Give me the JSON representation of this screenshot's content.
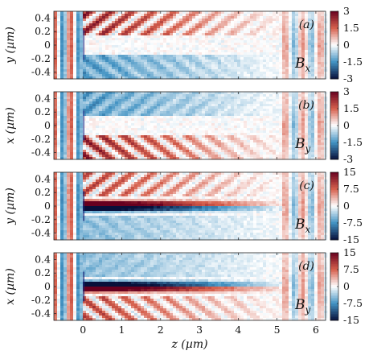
{
  "chart_data": {
    "type": "heatmap",
    "xlabel": "z (µm)",
    "xlim": [
      -0.75,
      6.25
    ],
    "xticks": [
      0,
      1,
      2,
      3,
      4,
      5,
      6
    ],
    "xtick_labels": [
      "0",
      "1",
      "2",
      "3",
      "4",
      "5",
      "6"
    ],
    "panels": [
      {
        "panel_label": "(a)",
        "field_label": "Bx",
        "ylabel": "y (µm)",
        "ylim": [
          -0.5,
          0.5
        ],
        "yticks": [
          0.4,
          0.2,
          0,
          -0.2,
          -0.4
        ],
        "ytick_labels": [
          "0.4",
          "0.2",
          "0",
          "-0.2",
          "-0.4"
        ],
        "colorbar_ticks": [
          3,
          1.5,
          0,
          -1.5,
          -3
        ],
        "colorbar_labels": [
          "3",
          "1.5",
          "0",
          "-1.5",
          "-3"
        ],
        "clim": [
          -3,
          3
        ],
        "pattern": "upper-red-lower-blue"
      },
      {
        "panel_label": "(b)",
        "field_label": "By",
        "ylabel": "x (µm)",
        "ylim": [
          -0.5,
          0.5
        ],
        "yticks": [
          0.4,
          0.2,
          0,
          -0.2,
          -0.4
        ],
        "ytick_labels": [
          "0.4",
          "0.2",
          "0",
          "-0.2",
          "-0.4"
        ],
        "colorbar_ticks": [
          3,
          1.5,
          0,
          -1.5,
          -3
        ],
        "colorbar_labels": [
          "3",
          "1.5",
          "0",
          "-1.5",
          "-3"
        ],
        "clim": [
          -3,
          3
        ],
        "pattern": "upper-blue-lower-red"
      },
      {
        "panel_label": "(c)",
        "field_label": "Bx",
        "ylabel": "y (µm)",
        "ylim": [
          -0.5,
          0.5
        ],
        "yticks": [
          0.4,
          0.2,
          0,
          -0.2,
          -0.4
        ],
        "ytick_labels": [
          "0.4",
          "0.2",
          "0",
          "-0.2",
          "-0.4"
        ],
        "colorbar_ticks": [
          15,
          7.5,
          0,
          -7.5,
          -15
        ],
        "colorbar_labels": [
          "15",
          "7.5",
          "0",
          "-7.5",
          "-15"
        ],
        "clim": [
          -15,
          15
        ],
        "pattern": "upper-red-lower-blue"
      },
      {
        "panel_label": "(d)",
        "field_label": "By",
        "ylabel": "x (µm)",
        "ylim": [
          -0.5,
          0.5
        ],
        "yticks": [
          0.4,
          0.2,
          0,
          -0.2,
          -0.4
        ],
        "ytick_labels": [
          "0.4",
          "0.2",
          "0",
          "-0.2",
          "-0.4"
        ],
        "colorbar_ticks": [
          15,
          7.5,
          0,
          -7.5,
          -15
        ],
        "colorbar_labels": [
          "15",
          "7.5",
          "0",
          "-7.5",
          "-15"
        ],
        "clim": [
          -15,
          15
        ],
        "pattern": "upper-blue-lower-red"
      }
    ],
    "colormap": [
      "#67001f",
      "#d6604d",
      "#ffffff",
      "#4393c3",
      "#08103a"
    ]
  }
}
